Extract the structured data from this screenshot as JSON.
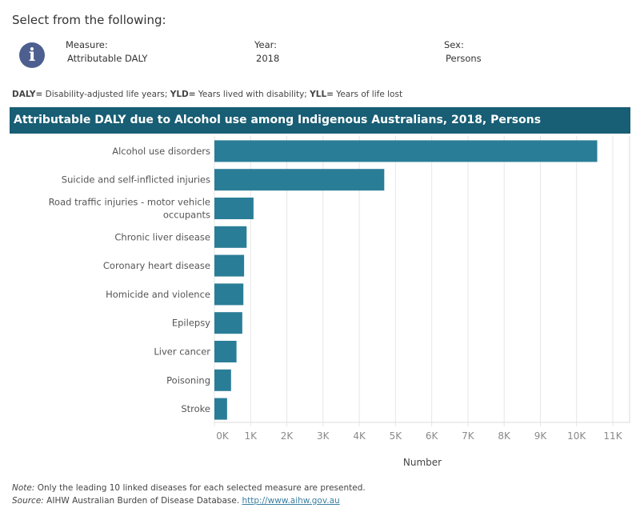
{
  "header": {
    "select_heading": "Select from the following:",
    "info_icon": "info-icon",
    "filters": [
      {
        "label": "Measure:",
        "value": "Attributable DALY"
      },
      {
        "label": "Year:",
        "value": "2018"
      },
      {
        "label": "Sex:",
        "value": "Persons"
      }
    ]
  },
  "abbreviations": [
    {
      "term": "DALY=",
      "definition": " Disability-adjusted life years; "
    },
    {
      "term": "YLD=",
      "definition": " Years lived with disability; "
    },
    {
      "term": "YLL=",
      "definition": " Years of life lost"
    }
  ],
  "colors": {
    "title_bar": "#185e74",
    "bar": "#2a7d97",
    "grid": "#e6e6e6"
  },
  "chart_data": {
    "type": "bar",
    "orientation": "horizontal",
    "title": "Attributable DALY due to Alcohol use among Indigenous Australians, 2018, Persons",
    "xlabel": "Number",
    "ylabel": "",
    "xlim": [
      0,
      11000
    ],
    "grid": true,
    "x_ticks": [
      "0K",
      "1K",
      "2K",
      "3K",
      "4K",
      "5K",
      "6K",
      "7K",
      "8K",
      "9K",
      "10K",
      "11K"
    ],
    "categories": [
      [
        "Alcohol use disorders"
      ],
      [
        "Suicide and self-inflicted injuries"
      ],
      [
        "Road traffic injuries - motor vehicle",
        "occupants"
      ],
      [
        "Chronic liver disease"
      ],
      [
        "Coronary heart disease"
      ],
      [
        "Homicide and violence"
      ],
      [
        "Epilepsy"
      ],
      [
        "Liver cancer"
      ],
      [
        "Poisoning"
      ],
      [
        "Stroke"
      ]
    ],
    "values": [
      10570,
      4690,
      1080,
      890,
      820,
      800,
      770,
      610,
      460,
      350
    ]
  },
  "footer": {
    "note_label": "Note:",
    "note_text": " Only the leading 10 linked diseases for each selected measure are presented.",
    "source_label": "Source:",
    "source_text": " AIHW Australian Burden of Disease Database. ",
    "source_link": "http://www.aihw.gov.au"
  }
}
